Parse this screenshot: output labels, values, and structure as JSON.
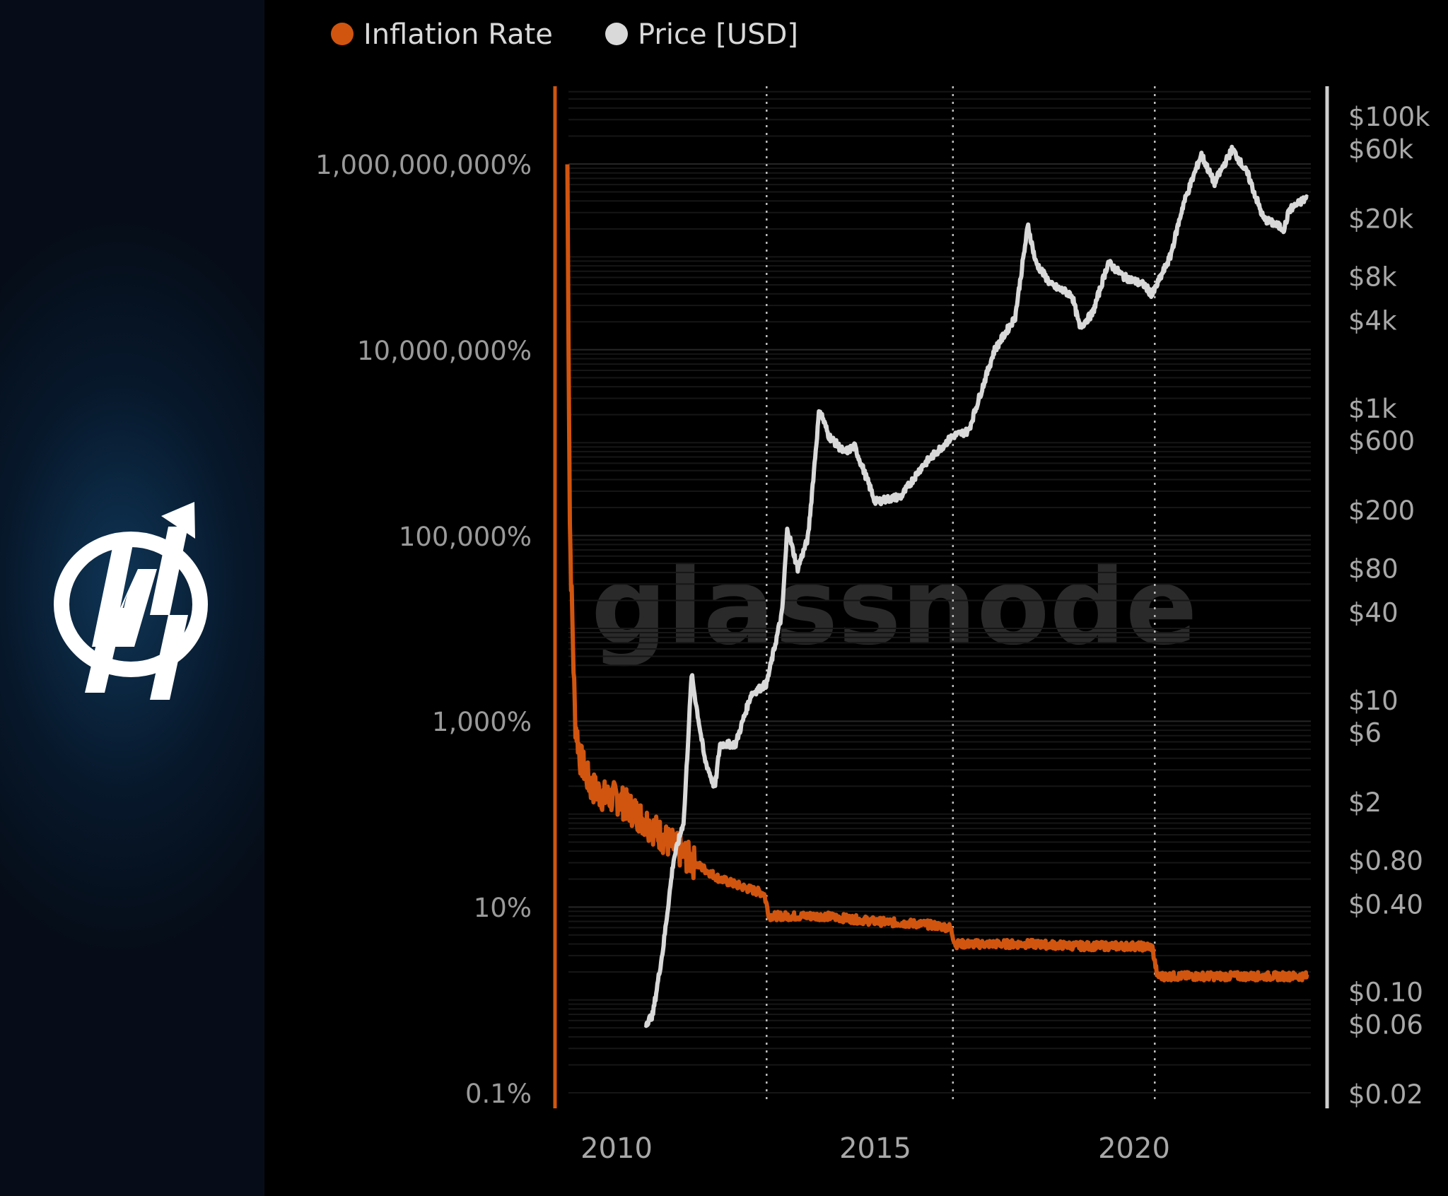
{
  "brand": {
    "logo_icon": "newhedge-logo-icon",
    "sidebar_color": "#06182b"
  },
  "chart_data": {
    "type": "line",
    "title": "",
    "watermark": "glassnode",
    "legend": [
      {
        "label": "Inflation Rate",
        "color": "#d1550f"
      },
      {
        "label": "Price [USD]",
        "color": "#d9d9d9"
      }
    ],
    "x_ticks": [
      "2010",
      "2015",
      "2020"
    ],
    "x_range": [
      2009.0,
      2023.4
    ],
    "halving_dates": [
      2012.9,
      2016.5,
      2020.4
    ],
    "y_left": {
      "scale": "log",
      "range_pct": [
        0.1,
        10000000000
      ],
      "ticks": [
        "1,000,000,000%",
        "10,000,000%",
        "100,000%",
        "1,000%",
        "10%",
        "0.1%"
      ]
    },
    "y_right": {
      "scale": "log",
      "range_usd": [
        0.02,
        100000
      ],
      "ticks": [
        "$100k",
        "$60k",
        "$20k",
        "$8k",
        "$4k",
        "$1k",
        "$600",
        "$200",
        "$80",
        "$40",
        "$10",
        "$6",
        "$2",
        "$0.80",
        "$0.40",
        "$0.10",
        "$0.06",
        "$0.02"
      ]
    },
    "series": [
      {
        "name": "Inflation Rate",
        "unit": "%",
        "color": "#d1550f",
        "x": [
          2009.05,
          2009.1,
          2009.2,
          2009.3,
          2009.5,
          2009.8,
          2010.0,
          2010.5,
          2011.0,
          2011.5,
          2012.0,
          2012.5,
          2012.85,
          2012.95,
          2013.5,
          2014.0,
          2015.0,
          2016.0,
          2016.45,
          2016.55,
          2017.0,
          2018.0,
          2019.0,
          2020.0,
          2020.35,
          2020.45,
          2021.0,
          2022.0,
          2023.0,
          2023.35
        ],
        "y": [
          1000000000,
          100000,
          1000,
          400,
          200,
          150,
          150,
          90,
          50,
          30,
          20,
          16,
          14,
          8,
          8,
          8,
          7,
          6.5,
          6,
          4,
          4,
          4,
          3.8,
          3.8,
          3.7,
          1.8,
          1.8,
          1.8,
          1.8,
          1.8
        ]
      },
      {
        "name": "Price [USD]",
        "unit": "USD",
        "color": "#d9d9d9",
        "x": [
          2010.55,
          2010.7,
          2010.9,
          2011.1,
          2011.3,
          2011.45,
          2011.7,
          2011.9,
          2012.0,
          2012.3,
          2012.6,
          2012.9,
          2013.2,
          2013.3,
          2013.5,
          2013.7,
          2013.92,
          2014.1,
          2014.4,
          2014.6,
          2015.0,
          2015.5,
          2015.9,
          2016.5,
          2016.8,
          2017.3,
          2017.7,
          2017.95,
          2018.1,
          2018.4,
          2018.8,
          2018.95,
          2019.2,
          2019.5,
          2019.8,
          2020.2,
          2020.35,
          2020.7,
          2020.95,
          2021.3,
          2021.55,
          2021.9,
          2022.2,
          2022.5,
          2022.9,
          2023.0,
          2023.35
        ],
        "y": [
          0.06,
          0.07,
          0.2,
          0.8,
          1.5,
          15,
          4,
          2.5,
          5,
          5,
          11,
          13,
          40,
          150,
          80,
          130,
          1000,
          650,
          500,
          550,
          230,
          250,
          400,
          650,
          700,
          2500,
          4200,
          18000,
          10000,
          7000,
          6000,
          3600,
          4500,
          10000,
          8000,
          7000,
          6000,
          11000,
          25000,
          55000,
          35000,
          60000,
          40000,
          20000,
          17000,
          23000,
          28000
        ]
      }
    ]
  }
}
